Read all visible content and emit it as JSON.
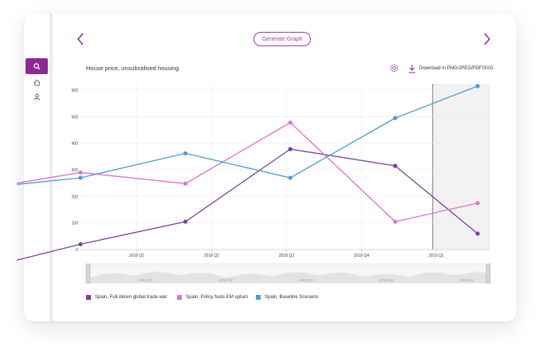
{
  "toolbar": {
    "generate_label": "Generate Graph"
  },
  "header": {
    "title": "House price, unsubsidised housing",
    "download_label": "Download in PNG/JPEG/PDF/SVG"
  },
  "sidebar": {
    "items": [
      {
        "icon": "search-icon",
        "active": true
      },
      {
        "icon": "home-icon"
      },
      {
        "icon": "user-icon"
      }
    ]
  },
  "colors": {
    "accent": "#8a2a92",
    "series1": "#7b3ea0",
    "series2": "#e06fd0",
    "series3": "#4a9ed0"
  },
  "chart_data": {
    "type": "line",
    "ylim": [
      0,
      600
    ],
    "yticks": [
      0,
      100,
      200,
      300,
      400,
      500,
      600
    ],
    "xticks": [
      {
        "label": "2018 Q1",
        "x": 0.75
      },
      {
        "label": "2018 Q2",
        "x": 1.75
      },
      {
        "label": "2018 Q3",
        "x": 2.75
      },
      {
        "label": "2018 Q4",
        "x": 3.75
      },
      {
        "label": "2019 Q1",
        "x": 4.75
      }
    ],
    "navigator_labels": [
      "2018 Q1",
      "2018 Q2",
      "2018 Q3",
      "2018 Q4",
      "2019 Q1"
    ],
    "xlim": [
      0,
      5
    ],
    "series": [
      {
        "name": "Spain, Full-blown global trade war",
        "color": "#7b3ea0",
        "x": [
          -0.85,
          0,
          1.4,
          2.8,
          4.2,
          5.3
        ],
        "y": [
          -40,
          20,
          105,
          378,
          315,
          60
        ]
      },
      {
        "name": "Spain, Policy fuels EM upturn",
        "color": "#e06fd0",
        "x": [
          -0.85,
          0,
          1.4,
          2.8,
          4.2,
          5.3
        ],
        "y": [
          250,
          290,
          248,
          478,
          105,
          175
        ]
      },
      {
        "name": "Spain, Baseline Scenario",
        "color": "#4a9ed0",
        "x": [
          -0.85,
          0,
          1.4,
          2.8,
          4.2,
          5.3
        ],
        "y": [
          245,
          270,
          362,
          270,
          495,
          615
        ]
      }
    ],
    "grid": true,
    "legend_position": "bottom-left"
  }
}
